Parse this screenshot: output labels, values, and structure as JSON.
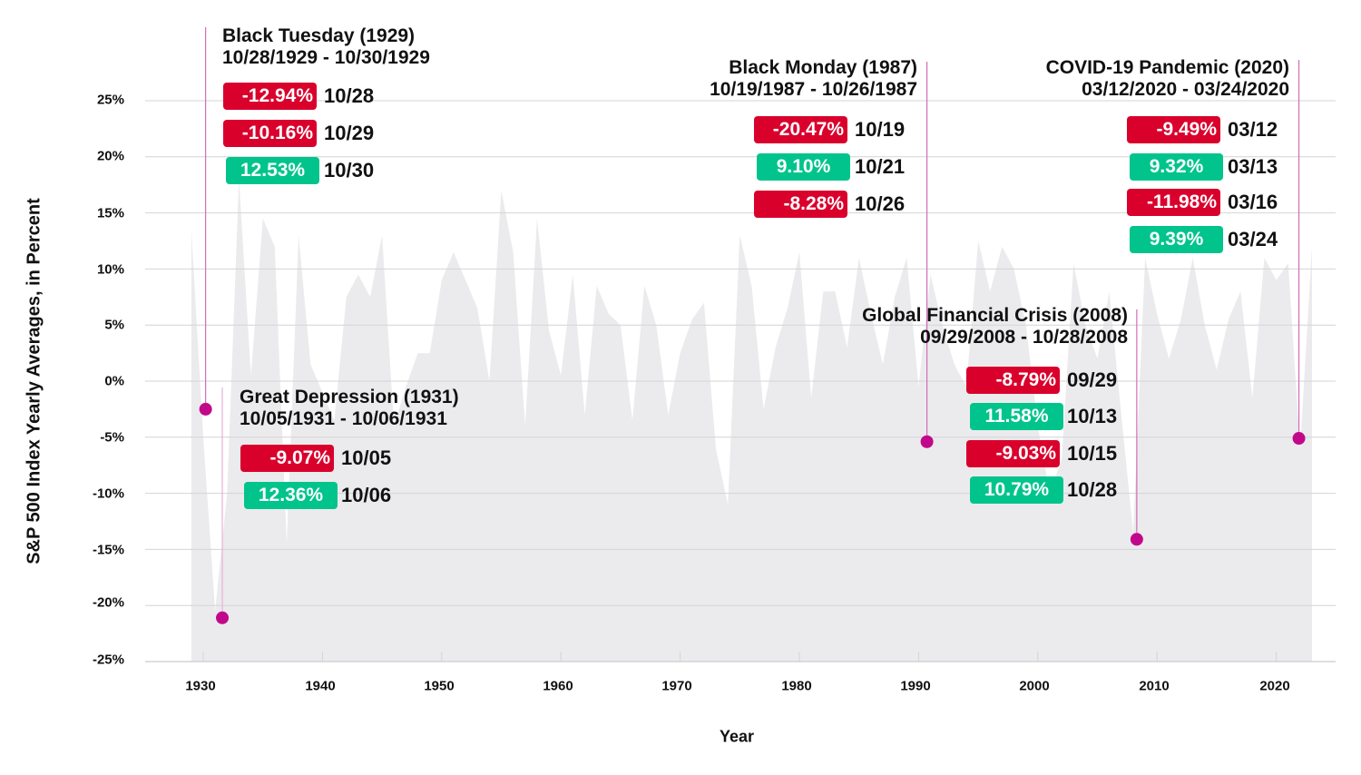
{
  "chart_data": {
    "type": "area",
    "title": "",
    "xlabel": "Year",
    "ylabel": "S&P 500 Index Yearly Averages, in Percent",
    "xlim": [
      1929,
      2023
    ],
    "ylim": [
      -25,
      25
    ],
    "grid": true,
    "x_ticks": [
      "1930",
      "1940",
      "1950",
      "1960",
      "1970",
      "1980",
      "1990",
      "2000",
      "2010",
      "2020"
    ],
    "y_ticks": [
      "25%",
      "20%",
      "15%",
      "10%",
      "5%",
      "0%",
      "-5%",
      "-10%",
      "-15%",
      "-20%",
      "-25%"
    ],
    "series": [
      {
        "name": "S&P 500 yearly average",
        "x": [
          1929,
          1930,
          1931,
          1932,
          1933,
          1934,
          1935,
          1936,
          1937,
          1938,
          1939,
          1940,
          1941,
          1942,
          1943,
          1944,
          1945,
          1946,
          1947,
          1948,
          1949,
          1950,
          1951,
          1952,
          1953,
          1954,
          1955,
          1956,
          1957,
          1958,
          1959,
          1960,
          1961,
          1962,
          1963,
          1964,
          1965,
          1966,
          1967,
          1968,
          1969,
          1970,
          1971,
          1972,
          1973,
          1974,
          1975,
          1976,
          1977,
          1978,
          1979,
          1980,
          1981,
          1982,
          1983,
          1984,
          1985,
          1986,
          1987,
          1988,
          1989,
          1990,
          1991,
          1992,
          1993,
          1994,
          1995,
          1996,
          1997,
          1998,
          1999,
          2000,
          2001,
          2002,
          2003,
          2004,
          2005,
          2006,
          2007,
          2008,
          2009,
          2010,
          2011,
          2012,
          2013,
          2014,
          2015,
          2016,
          2017,
          2018,
          2019,
          2020,
          2021,
          2022,
          2023
        ],
        "values": [
          13.5,
          -5.0,
          -20.5,
          -10.0,
          18.0,
          0.5,
          14.5,
          12.0,
          -14.5,
          13.0,
          1.5,
          -1.0,
          -3.5,
          7.5,
          9.5,
          7.5,
          13.0,
          -4.0,
          -0.5,
          2.5,
          2.5,
          9.0,
          11.5,
          9.0,
          6.5,
          0.0,
          17.0,
          11.5,
          -4.0,
          14.5,
          4.5,
          0.5,
          9.5,
          -3.0,
          8.5,
          6.0,
          5.0,
          -3.5,
          8.5,
          5.0,
          -3.0,
          2.5,
          5.5,
          7.0,
          -6.0,
          -11.0,
          13.0,
          8.5,
          -2.5,
          3.0,
          6.5,
          11.5,
          -1.5,
          8.0,
          8.0,
          3.0,
          11.0,
          6.0,
          1.5,
          7.5,
          11.0,
          -0.5,
          9.5,
          5.0,
          1.5,
          -0.5,
          12.5,
          8.0,
          12.0,
          10.0,
          5.0,
          -4.0,
          -10.0,
          -7.0,
          10.5,
          5.0,
          2.0,
          8.0,
          -3.0,
          -13.5,
          11.0,
          6.0,
          2.0,
          5.5,
          11.0,
          5.0,
          1.0,
          5.5,
          8.0,
          -1.5,
          11.0,
          9.0,
          10.5,
          -6.0,
          12.0
        ]
      }
    ],
    "annotations": [
      {
        "label": "Black Tuesday (1929)",
        "year": 1930.2,
        "value": -2.5
      },
      {
        "label": "Great Depression (1931)",
        "year": 1931.6,
        "value": -21.1
      },
      {
        "label": "Black Monday (1987)",
        "year": 1990.7,
        "value": -5.4
      },
      {
        "label": "Global Financial Crisis (2008)",
        "year": 2008.3,
        "value": -14.1
      },
      {
        "label": "COVID-19 Pandemic (2020)",
        "year": 2021.9,
        "value": -5.1
      }
    ]
  },
  "axes": {
    "ylabel": "S&P 500 Index Yearly Averages, in Percent",
    "xlabel": "Year",
    "y_ticks": [
      {
        "label": "25%",
        "value": 25
      },
      {
        "label": "20%",
        "value": 20
      },
      {
        "label": "15%",
        "value": 15
      },
      {
        "label": "10%",
        "value": 10
      },
      {
        "label": "5%",
        "value": 5
      },
      {
        "label": "0%",
        "value": 0
      },
      {
        "label": "-5%",
        "value": -5
      },
      {
        "label": "-10%",
        "value": -10
      },
      {
        "label": "-15%",
        "value": -15
      },
      {
        "label": "-20%",
        "value": -20
      },
      {
        "label": "-25%",
        "value": -25
      }
    ],
    "x_ticks": [
      {
        "label": "1930",
        "value": 1930
      },
      {
        "label": "1940",
        "value": 1940
      },
      {
        "label": "1950",
        "value": 1950
      },
      {
        "label": "1960",
        "value": 1960
      },
      {
        "label": "1970",
        "value": 1970
      },
      {
        "label": "1980",
        "value": 1980
      },
      {
        "label": "1990",
        "value": 1990
      },
      {
        "label": "2000",
        "value": 2000
      },
      {
        "label": "2010",
        "value": 2010
      },
      {
        "label": "2020",
        "value": 2020
      }
    ]
  },
  "colors": {
    "area_fill": "#ebebed",
    "grid": "#d4d4d6",
    "marker": "#c2088a",
    "leader_line": "#d46cb8",
    "negative": "#d9002c",
    "positive": "#00c48c",
    "text": "#111111"
  },
  "events": {
    "black_tuesday": {
      "title": "Black Tuesday (1929)",
      "range": "10/28/1929 - 10/30/1929",
      "rows": [
        {
          "pct": "-12.94%",
          "date": "10/28",
          "sign": "neg"
        },
        {
          "pct": "-10.16%",
          "date": "10/29",
          "sign": "neg"
        },
        {
          "pct": "12.53%",
          "date": "10/30",
          "sign": "pos"
        }
      ]
    },
    "great_depression": {
      "title": "Great Depression (1931)",
      "range": "10/05/1931 - 10/06/1931",
      "rows": [
        {
          "pct": "-9.07%",
          "date": "10/05",
          "sign": "neg"
        },
        {
          "pct": "12.36%",
          "date": "10/06",
          "sign": "pos"
        }
      ]
    },
    "black_monday": {
      "title": "Black Monday (1987)",
      "range": "10/19/1987 - 10/26/1987",
      "rows": [
        {
          "pct": "-20.47%",
          "date": "10/19",
          "sign": "neg"
        },
        {
          "pct": "9.10%",
          "date": "10/21",
          "sign": "pos"
        },
        {
          "pct": "-8.28%",
          "date": "10/26",
          "sign": "neg"
        }
      ]
    },
    "gfc": {
      "title": "Global Financial Crisis (2008)",
      "range": "09/29/2008 - 10/28/2008",
      "rows": [
        {
          "pct": "-8.79%",
          "date": "09/29",
          "sign": "neg"
        },
        {
          "pct": "11.58%",
          "date": "10/13",
          "sign": "pos"
        },
        {
          "pct": "-9.03%",
          "date": "10/15",
          "sign": "neg"
        },
        {
          "pct": "10.79%",
          "date": "10/28",
          "sign": "pos"
        }
      ]
    },
    "covid": {
      "title": "COVID-19 Pandemic (2020)",
      "range": "03/12/2020 - 03/24/2020",
      "rows": [
        {
          "pct": "-9.49%",
          "date": "03/12",
          "sign": "neg"
        },
        {
          "pct": "9.32%",
          "date": "03/13",
          "sign": "pos"
        },
        {
          "pct": "-11.98%",
          "date": "03/16",
          "sign": "neg"
        },
        {
          "pct": "9.39%",
          "date": "03/24",
          "sign": "pos"
        }
      ]
    }
  }
}
